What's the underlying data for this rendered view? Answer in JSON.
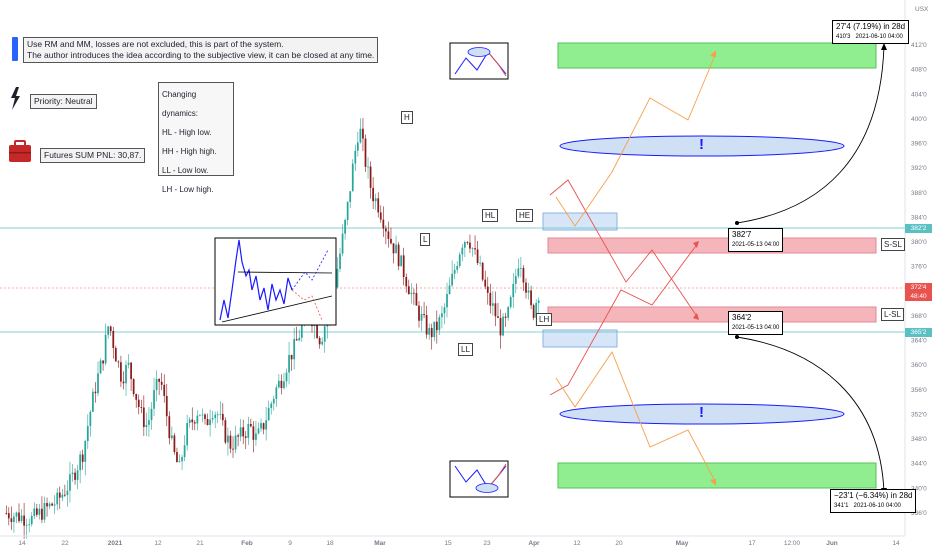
{
  "currency": "USX",
  "notes": {
    "main_line1": "Use RM and MM, losses are not excluded, this is part of the system.",
    "main_line2": "The author introduces the idea according to the subjective view, it can be closed at any time.",
    "priority": "Priority: Neutral",
    "pnl": "Futures SUM PNL: 30,87."
  },
  "dynamics": {
    "title": "Changing dynamics:",
    "items": [
      "HL - High low.",
      "HH - High high.",
      "LL - Low low.",
      "LH - Low high."
    ]
  },
  "labels": {
    "h": "H",
    "l": "L",
    "hl": "HL",
    "he": "HE",
    "ll": "LL",
    "lh": "LH",
    "ssl": "S-SL",
    "lsl": "L-SL",
    "exclaim": "!"
  },
  "callouts": {
    "top_main": "27'4 (7.19%) in 28d",
    "top_sub1": "410'3",
    "top_sub2": "2021-06-10 04:00",
    "mid_top_val": "382'7",
    "mid_top_date": "2021-05-13 04:00",
    "mid_bot_val": "364'2",
    "mid_bot_date": "2021-05-13 04:00",
    "bot_main": "−23'1 (−6.34%) in 28d",
    "bot_sub1": "341'1",
    "bot_sub2": "2021-06-10 04:00"
  },
  "price_tags": {
    "upper": "382'2",
    "current": "372'4",
    "timer": "48:40",
    "lower": "365'2"
  },
  "colors": {
    "bull": "#26a69a",
    "bear": "#8b1a1a",
    "green_zone": "#90ee90",
    "red_zone": "#f4b6bb",
    "blue_zone": "#d6e6f8",
    "ellipse_fill": "#cfe0f5",
    "ellipse_stroke": "#1a1aff",
    "teal_line": "#5bc0c4",
    "red_line": "#e8534f",
    "orange_line": "#f5a04a"
  },
  "chart_data": {
    "type": "candlestick",
    "y_axis_ticks": [
      "412'0",
      "408'0",
      "404'0",
      "400'0",
      "396'0",
      "392'0",
      "388'0",
      "384'0",
      "380'0",
      "376'0",
      "372'0",
      "368'0",
      "364'0",
      "360'0",
      "356'0",
      "352'0",
      "348'0",
      "344'0",
      "340'0",
      "336'0"
    ],
    "x_axis_ticks": [
      "14",
      "22",
      "2021",
      "12",
      "21",
      "Feb",
      "9",
      "18",
      "Mar",
      "15",
      "23",
      "Apr",
      "12",
      "20",
      "May",
      "17",
      "12:00",
      "Jun",
      "14"
    ],
    "ylim": [
      334,
      414
    ],
    "key_levels": {
      "upper": 382.2,
      "current": 372.4,
      "lower": 365.2
    },
    "price_path": [
      [
        0,
        336
      ],
      [
        4,
        335
      ],
      [
        8,
        338
      ],
      [
        10,
        341
      ],
      [
        12,
        346
      ],
      [
        13,
        352
      ],
      [
        14,
        357
      ],
      [
        15,
        361
      ],
      [
        16,
        367
      ],
      [
        17,
        362
      ],
      [
        18,
        358
      ],
      [
        19,
        360
      ],
      [
        20,
        356
      ],
      [
        21,
        352
      ],
      [
        22,
        350
      ],
      [
        23,
        355
      ],
      [
        24,
        358
      ],
      [
        25,
        352
      ],
      [
        26,
        346
      ],
      [
        27,
        343
      ],
      [
        28,
        349
      ],
      [
        29,
        351
      ],
      [
        30,
        353
      ],
      [
        31,
        350
      ],
      [
        32,
        353
      ],
      [
        33,
        352
      ],
      [
        34,
        349
      ],
      [
        35,
        347
      ],
      [
        36,
        348
      ],
      [
        37,
        349
      ],
      [
        38,
        350
      ],
      [
        39,
        348
      ],
      [
        40,
        350
      ],
      [
        41,
        353
      ],
      [
        42,
        356
      ],
      [
        43,
        358
      ],
      [
        44,
        361
      ],
      [
        45,
        363
      ],
      [
        46,
        366
      ],
      [
        47,
        369
      ],
      [
        48,
        367
      ],
      [
        49,
        364
      ],
      [
        50,
        368
      ],
      [
        51,
        372
      ],
      [
        52,
        378
      ],
      [
        53,
        384
      ],
      [
        54,
        392
      ],
      [
        55,
        399
      ],
      [
        56,
        393
      ],
      [
        57,
        388
      ],
      [
        58,
        386
      ],
      [
        59,
        383
      ],
      [
        60,
        380
      ],
      [
        61,
        378
      ],
      [
        62,
        375
      ],
      [
        63,
        372
      ],
      [
        64,
        369
      ],
      [
        65,
        367
      ],
      [
        66,
        365
      ],
      [
        67,
        366
      ],
      [
        68,
        368
      ],
      [
        69,
        372
      ],
      [
        70,
        376
      ],
      [
        71,
        380
      ],
      [
        72,
        381
      ],
      [
        73,
        378
      ],
      [
        74,
        375
      ],
      [
        75,
        371
      ],
      [
        76,
        369
      ],
      [
        77,
        366
      ],
      [
        78,
        367
      ],
      [
        79,
        372
      ],
      [
        80,
        378
      ],
      [
        81,
        373
      ],
      [
        82,
        368
      ],
      [
        83,
        372
      ]
    ]
  }
}
